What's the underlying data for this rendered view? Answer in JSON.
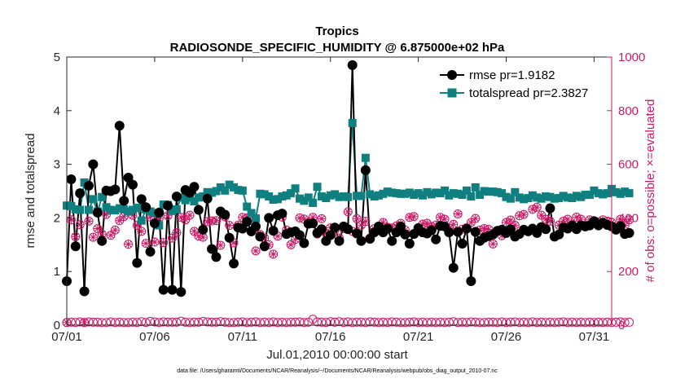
{
  "chart_data": {
    "type": "line",
    "title": "Tropics",
    "subtitle": "RADIOSONDE_SPECIFIC_HUMIDITY @ 6.875000e+02 hPa",
    "xlabel": "Jul.01,2010 00:00:00 start",
    "ylabel_left": "rmse and totalspread",
    "ylabel_right": "# of obs: o=possible; ×=evaluated",
    "footnote": "data file: /Users/gharamti/Documents/NCAR/Reanalysis/~/Documents/NCAR/Reanalysis/webpub/obs_diag_output_2010-07.nc",
    "xlim": [
      1,
      32
    ],
    "ylim_left": [
      0,
      5
    ],
    "ylim_right": [
      0,
      1000
    ],
    "x_ticks": [
      1,
      6,
      11,
      16,
      21,
      26,
      31
    ],
    "x_tick_labels": [
      "07/01",
      "07/06",
      "07/11",
      "07/16",
      "07/21",
      "07/26",
      "07/31"
    ],
    "y_left_ticks": [
      "0",
      "1",
      "2",
      "3",
      "4",
      "5"
    ],
    "y_right_ticks": [
      "0",
      "200",
      "400",
      "600",
      "800",
      "1000"
    ],
    "colors": {
      "rmse": "#000000",
      "spread": "#0f7f80",
      "obs": "#cc1a66",
      "axis": "#262626"
    },
    "grid": false,
    "legend_position": "top-right",
    "legend": [
      "rmse pr=1.9182",
      "totalspread pr=2.3827"
    ],
    "start_day": 1,
    "step_days": 0.25,
    "series": [
      {
        "name": "rmse",
        "legend": "rmse pr=1.9182",
        "values": [
          0.82,
          2.72,
          1.47,
          2.46,
          0.63,
          2.6,
          3.0,
          2.1,
          1.57,
          2.51,
          2.5,
          2.53,
          3.72,
          2.32,
          2.75,
          2.62,
          1.16,
          2.35,
          2.2,
          1.37,
          1.9,
          2.1,
          0.66,
          2.23,
          0.66,
          2.4,
          0.62,
          2.52,
          2.47,
          2.58,
          2.15,
          1.78,
          2.36,
          1.42,
          1.27,
          2.12,
          2.06,
          1.63,
          1.15,
          1.82,
          1.8,
          1.93,
          1.75,
          1.84,
          1.65,
          1.47,
          2.0,
          1.76,
          2.05,
          2.08,
          1.7,
          1.73,
          1.75,
          1.68,
          1.53,
          1.89,
          1.9,
          1.72,
          1.79,
          1.57,
          1.68,
          1.82,
          1.57,
          1.84,
          1.79,
          4.85,
          1.71,
          1.57,
          2.89,
          1.61,
          1.73,
          1.84,
          1.73,
          1.8,
          1.57,
          1.73,
          1.84,
          1.69,
          1.52,
          1.7,
          1.81,
          1.73,
          1.71,
          1.77,
          1.6,
          1.85,
          1.84,
          1.73,
          1.07,
          1.74,
          1.52,
          1.8,
          0.82,
          1.74,
          1.57,
          1.63,
          1.66,
          1.69,
          1.76,
          1.78,
          1.72,
          1.79,
          1.65,
          1.7,
          1.78,
          1.75,
          1.8,
          1.72,
          1.83,
          1.79,
          2.18,
          1.65,
          1.69,
          1.82,
          1.8,
          1.86,
          1.79,
          1.86,
          1.84,
          1.86,
          1.94,
          1.86,
          1.91,
          1.87,
          1.84,
          1.78,
          1.85,
          1.7,
          1.72
        ]
      },
      {
        "name": "totalspread",
        "legend": "totalspread pr=2.3827",
        "values": [
          2.23,
          2.22,
          2.16,
          2.15,
          2.66,
          2.15,
          2.35,
          2.12,
          2.39,
          2.2,
          2.15,
          2.14,
          2.18,
          2.16,
          2.12,
          2.15,
          2.19,
          1.95,
          2.16,
          2.12,
          2.09,
          1.86,
          2.25,
          2.24,
          2.13,
          2.16,
          2.38,
          2.33,
          2.38,
          2.31,
          2.38,
          2.4,
          2.48,
          2.47,
          2.5,
          2.57,
          2.51,
          2.62,
          2.57,
          2.52,
          2.51,
          2.21,
          2.09,
          1.99,
          2.45,
          2.44,
          2.4,
          2.34,
          2.35,
          2.4,
          2.42,
          2.46,
          2.55,
          2.36,
          2.32,
          2.38,
          2.28,
          2.58,
          2.4,
          2.37,
          2.42,
          2.44,
          2.39,
          2.4,
          2.39,
          3.77,
          2.41,
          2.41,
          3.12,
          2.44,
          2.4,
          2.42,
          2.45,
          2.49,
          2.47,
          2.46,
          2.45,
          2.45,
          2.47,
          2.43,
          2.46,
          2.42,
          2.48,
          2.44,
          2.47,
          2.46,
          2.51,
          2.42,
          2.46,
          2.45,
          2.43,
          2.51,
          2.4,
          2.57,
          2.43,
          2.5,
          2.49,
          2.49,
          2.48,
          2.46,
          2.39,
          2.36,
          2.48,
          2.38,
          2.35,
          2.37,
          2.42,
          2.38,
          2.36,
          2.4,
          2.39,
          2.36,
          2.37,
          2.41,
          2.38,
          2.37,
          2.41,
          2.39,
          2.43,
          2.43,
          2.51,
          2.46,
          2.44,
          2.46,
          2.54,
          2.48,
          2.45,
          2.49,
          2.46
        ]
      },
      {
        "name": "obs_possible",
        "values": [
          10,
          11,
          10,
          12,
          10,
          12,
          11,
          11,
          10,
          10,
          12,
          10,
          11,
          10,
          10,
          11,
          10,
          13,
          10,
          14,
          12,
          10,
          12,
          11,
          11,
          11,
          15,
          11,
          10,
          11,
          11,
          14,
          12,
          11,
          11,
          13,
          11,
          10,
          10,
          11,
          12,
          10,
          11,
          12,
          10,
          11,
          10,
          12,
          10,
          11,
          10,
          11,
          11,
          12,
          10,
          11,
          22,
          12,
          11,
          10,
          13,
          11,
          13,
          10,
          12,
          10,
          11,
          11,
          10,
          12,
          11,
          10,
          11,
          10,
          12,
          11,
          10,
          10,
          11,
          12,
          10,
          11,
          10,
          11,
          10,
          11,
          10,
          11,
          13,
          10,
          11,
          10,
          12,
          11,
          10,
          10,
          11,
          11,
          10,
          12,
          10,
          11,
          12,
          10,
          11,
          10,
          12,
          10,
          11,
          10,
          11,
          10,
          11,
          12,
          10,
          11,
          10,
          11,
          10,
          11,
          10,
          11,
          10,
          11,
          10,
          11,
          12,
          10,
          11
        ]
      },
      {
        "name": "obs_evaluated",
        "values": [
          10,
          393,
          330,
          375,
          10,
          388,
          328,
          360,
          340,
          413,
          335,
          355,
          390,
          405,
          302,
          410,
          372,
          350,
          305,
          403,
          310,
          398,
          308,
          408,
          325,
          345,
          402,
          393,
          410,
          350,
          332,
          328,
          386,
          389,
          390,
          298,
          404,
          372,
          307,
          373,
          402,
          400,
          348,
          277,
          338,
          325,
          300,
          265,
          332,
          403,
          355,
          300,
          320,
          400,
          396,
          383,
          402,
          340,
          397,
          342,
          363,
          355,
          325,
          360,
          423,
          350,
          397,
          373,
          387,
          325,
          360,
          357,
          383,
          365,
          362,
          370,
          380,
          355,
          402,
          405,
          357,
          377,
          380,
          368,
          373,
          402,
          395,
          362,
          376,
          415,
          358,
          363,
          383,
          398,
          355,
          360,
          357,
          303,
          350,
          334,
          383,
          392,
          373,
          408,
          413,
          350,
          432,
          440,
          410,
          395,
          388,
          330,
          373,
          388,
          395,
          375,
          403,
          395,
          373,
          393,
          388,
          385,
          393,
          388,
          383,
          360,
          395,
          372,
          393
        ]
      }
    ]
  }
}
